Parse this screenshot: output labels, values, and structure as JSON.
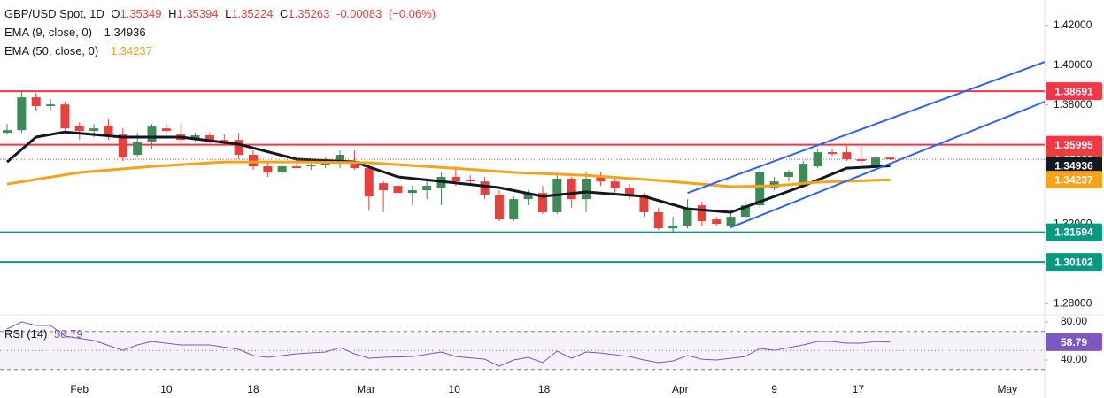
{
  "chart_data": {
    "type": "candlestick",
    "symbol": "GBP/USD Spot, 1D",
    "legend_labels": {
      "open": "O",
      "high": "H",
      "low": "L",
      "close": "C"
    },
    "change": "-0.00083",
    "change_pct": "(−0.06%)",
    "up_color": "#3d8b57",
    "down_color": "#e8403a",
    "candles": [
      [
        1.366,
        1.3704,
        1.3651,
        1.3673
      ],
      [
        1.3673,
        1.3869,
        1.366,
        1.3838
      ],
      [
        1.3838,
        1.386,
        1.3771,
        1.3794
      ],
      [
        1.3794,
        1.3829,
        1.3771,
        1.3802
      ],
      [
        1.3802,
        1.3816,
        1.3673,
        1.3682
      ],
      [
        1.3696,
        1.3713,
        1.3624,
        1.3669
      ],
      [
        1.3669,
        1.3704,
        1.3638,
        1.3682
      ],
      [
        1.3696,
        1.3727,
        1.3624,
        1.3651
      ],
      [
        1.3651,
        1.3682,
        1.3518,
        1.3535
      ],
      [
        1.3549,
        1.366,
        1.3535,
        1.3616
      ],
      [
        1.3616,
        1.3704,
        1.358,
        1.3691
      ],
      [
        1.3682,
        1.3704,
        1.3651,
        1.3669
      ],
      [
        1.3651,
        1.3704,
        1.3607,
        1.3624
      ],
      [
        1.3624,
        1.366,
        1.3616,
        1.3647
      ],
      [
        1.3647,
        1.366,
        1.3607,
        1.3624
      ],
      [
        1.3624,
        1.3651,
        1.3593,
        1.3616
      ],
      [
        1.3624,
        1.366,
        1.3527,
        1.3549
      ],
      [
        1.3549,
        1.3571,
        1.3473,
        1.3491
      ],
      [
        1.3491,
        1.3518,
        1.3438,
        1.346
      ],
      [
        1.346,
        1.3504,
        1.3446,
        1.3491
      ],
      [
        1.3491,
        1.3518,
        1.3482,
        1.3482
      ],
      [
        1.3491,
        1.3518,
        1.3473,
        1.35
      ],
      [
        1.35,
        1.3535,
        1.3482,
        1.3509
      ],
      [
        1.3504,
        1.3571,
        1.3482,
        1.3549
      ],
      [
        1.3518,
        1.3571,
        1.3473,
        1.3482
      ],
      [
        1.3482,
        1.3491,
        1.3268,
        1.334
      ],
      [
        1.3406,
        1.3415,
        1.326,
        1.3371
      ],
      [
        1.3393,
        1.3415,
        1.3304,
        1.3357
      ],
      [
        1.3357,
        1.3393,
        1.3295,
        1.3371
      ],
      [
        1.3371,
        1.3415,
        1.3326,
        1.3393
      ],
      [
        1.3384,
        1.346,
        1.3295,
        1.3438
      ],
      [
        1.3438,
        1.3491,
        1.3393,
        1.3415
      ],
      [
        1.3424,
        1.3446,
        1.3393,
        1.3415
      ],
      [
        1.3415,
        1.3438,
        1.3326,
        1.3349
      ],
      [
        1.3349,
        1.3371,
        1.3215,
        1.3224
      ],
      [
        1.3224,
        1.334,
        1.3215,
        1.3326
      ],
      [
        1.3326,
        1.3371,
        1.3295,
        1.3357
      ],
      [
        1.3357,
        1.3393,
        1.3251,
        1.326
      ],
      [
        1.326,
        1.3446,
        1.3251,
        1.3429
      ],
      [
        1.3429,
        1.3438,
        1.3282,
        1.3326
      ],
      [
        1.3326,
        1.346,
        1.326,
        1.3429
      ],
      [
        1.3438,
        1.346,
        1.3393,
        1.3415
      ],
      [
        1.3415,
        1.3438,
        1.3357,
        1.3384
      ],
      [
        1.3384,
        1.3402,
        1.3326,
        1.3349
      ],
      [
        1.3349,
        1.3357,
        1.3237,
        1.326
      ],
      [
        1.326,
        1.3282,
        1.3171,
        1.3179
      ],
      [
        1.3179,
        1.3237,
        1.3162,
        1.3193
      ],
      [
        1.3193,
        1.3326,
        1.3179,
        1.3282
      ],
      [
        1.3295,
        1.3313,
        1.3193,
        1.3215
      ],
      [
        1.3224,
        1.3237,
        1.3188,
        1.3202
      ],
      [
        1.3193,
        1.326,
        1.3179,
        1.3237
      ],
      [
        1.3237,
        1.3313,
        1.3224,
        1.3295
      ],
      [
        1.3295,
        1.3491,
        1.3282,
        1.346
      ],
      [
        1.3384,
        1.3438,
        1.3371,
        1.3415
      ],
      [
        1.3438,
        1.3473,
        1.3415,
        1.346
      ],
      [
        1.3393,
        1.3518,
        1.3384,
        1.3504
      ],
      [
        1.3491,
        1.358,
        1.3482,
        1.3562
      ],
      [
        1.3562,
        1.358,
        1.3544,
        1.3553
      ],
      [
        1.3562,
        1.3593,
        1.3518,
        1.3527
      ],
      [
        1.3527,
        1.3593,
        1.3504,
        1.3518
      ],
      [
        1.3491,
        1.3544,
        1.3482,
        1.3535
      ],
      [
        1.35349,
        1.35394,
        1.35224,
        1.35263
      ]
    ],
    "series": [
      {
        "name": "EMA (9, close, 0)",
        "color": "#131722",
        "x": [
          0,
          2,
          4,
          8,
          12,
          16,
          20,
          24,
          27,
          30,
          34,
          37,
          40,
          44,
          47,
          50,
          52,
          55,
          58,
          61
        ],
        "values": [
          1.3513,
          1.3638,
          1.3664,
          1.3638,
          1.3638,
          1.3602,
          1.3527,
          1.3513,
          1.3438,
          1.3415,
          1.3384,
          1.334,
          1.3362,
          1.334,
          1.3277,
          1.326,
          1.3313,
          1.3393,
          1.3482,
          1.34936
        ]
      },
      {
        "name": "EMA (50, close, 0)",
        "color": "#f7a21b",
        "x": [
          0,
          5,
          10,
          15,
          20,
          25,
          30,
          35,
          40,
          45,
          50,
          53,
          56,
          61
        ],
        "values": [
          1.3402,
          1.346,
          1.3491,
          1.3513,
          1.3513,
          1.3509,
          1.3486,
          1.346,
          1.3446,
          1.342,
          1.3389,
          1.3393,
          1.3411,
          1.34237
        ]
      }
    ],
    "trendlines": [
      {
        "color": "#2962ff",
        "x": [
          47,
          71.68
        ],
        "values": [
          1.3357,
          1.4016
        ]
      },
      {
        "color": "#2962ff",
        "x": [
          50,
          71.68
        ],
        "values": [
          1.3184,
          1.3816
        ]
      }
    ],
    "levels": [
      {
        "value": 1.38691,
        "color": "#f23645"
      },
      {
        "value": 1.35995,
        "color": "#f23645"
      },
      {
        "value": 1.31594,
        "color": "#089981"
      },
      {
        "value": 1.30102,
        "color": "#089981"
      }
    ],
    "xlim": [
      -0.49,
      71.68
    ],
    "ylim": [
      1.2748,
      1.4328
    ],
    "xticks": [
      {
        "value": 5,
        "label": "Feb"
      },
      {
        "value": 11,
        "label": "10"
      },
      {
        "value": 17,
        "label": "18"
      },
      {
        "value": 24.8,
        "label": "Mar"
      },
      {
        "value": 30.9,
        "label": "10"
      },
      {
        "value": 37.1,
        "label": "18"
      },
      {
        "value": 46.5,
        "label": "Apr"
      },
      {
        "value": 53,
        "label": "9"
      },
      {
        "value": 58.8,
        "label": "17"
      },
      {
        "value": 69.1,
        "label": "May"
      }
    ],
    "yticks": [
      {
        "value": 1.42,
        "label": "1.42000"
      },
      {
        "value": 1.4,
        "label": "1.40000"
      },
      {
        "value": 1.38,
        "label": "1.38000"
      },
      {
        "value": 1.32,
        "label": "1.32000"
      },
      {
        "value": 1.28,
        "label": "1.28000"
      }
    ],
    "rsi": {
      "name": "RSI (14)",
      "color": "#7e57c2",
      "x": [
        0,
        1,
        2,
        3,
        4,
        6,
        8,
        9,
        10,
        12,
        14,
        16,
        17,
        18,
        20,
        22,
        23,
        24,
        25,
        26,
        28,
        30,
        31,
        33,
        34,
        35,
        36,
        37,
        38,
        39,
        40,
        41,
        43,
        44,
        45,
        46,
        47,
        48,
        49,
        51,
        52,
        53,
        55,
        56,
        57,
        58,
        59,
        60,
        61
      ],
      "values": [
        72.6,
        80.0,
        76.3,
        76.3,
        65.1,
        60.5,
        50.2,
        55.8,
        59.5,
        55.8,
        55.8,
        51.2,
        44.7,
        42.8,
        46.5,
        48.4,
        53.0,
        46.5,
        41.9,
        42.8,
        43.7,
        48.4,
        43.7,
        40.9,
        33.5,
        40.0,
        42.8,
        37.2,
        49.3,
        41.9,
        48.4,
        47.4,
        43.7,
        40.0,
        37.2,
        39.1,
        44.7,
        40.9,
        40.0,
        43.7,
        52.1,
        50.2,
        55.8,
        59.5,
        59.5,
        57.7,
        57.7,
        59.5,
        58.79
      ],
      "ylim": [
        20.5,
        85.6
      ],
      "yticks": [
        {
          "value": 80,
          "label": "80.00"
        },
        {
          "value": 40,
          "label": "40.00"
        }
      ],
      "bands": [
        70,
        50,
        30
      ]
    }
  }
}
